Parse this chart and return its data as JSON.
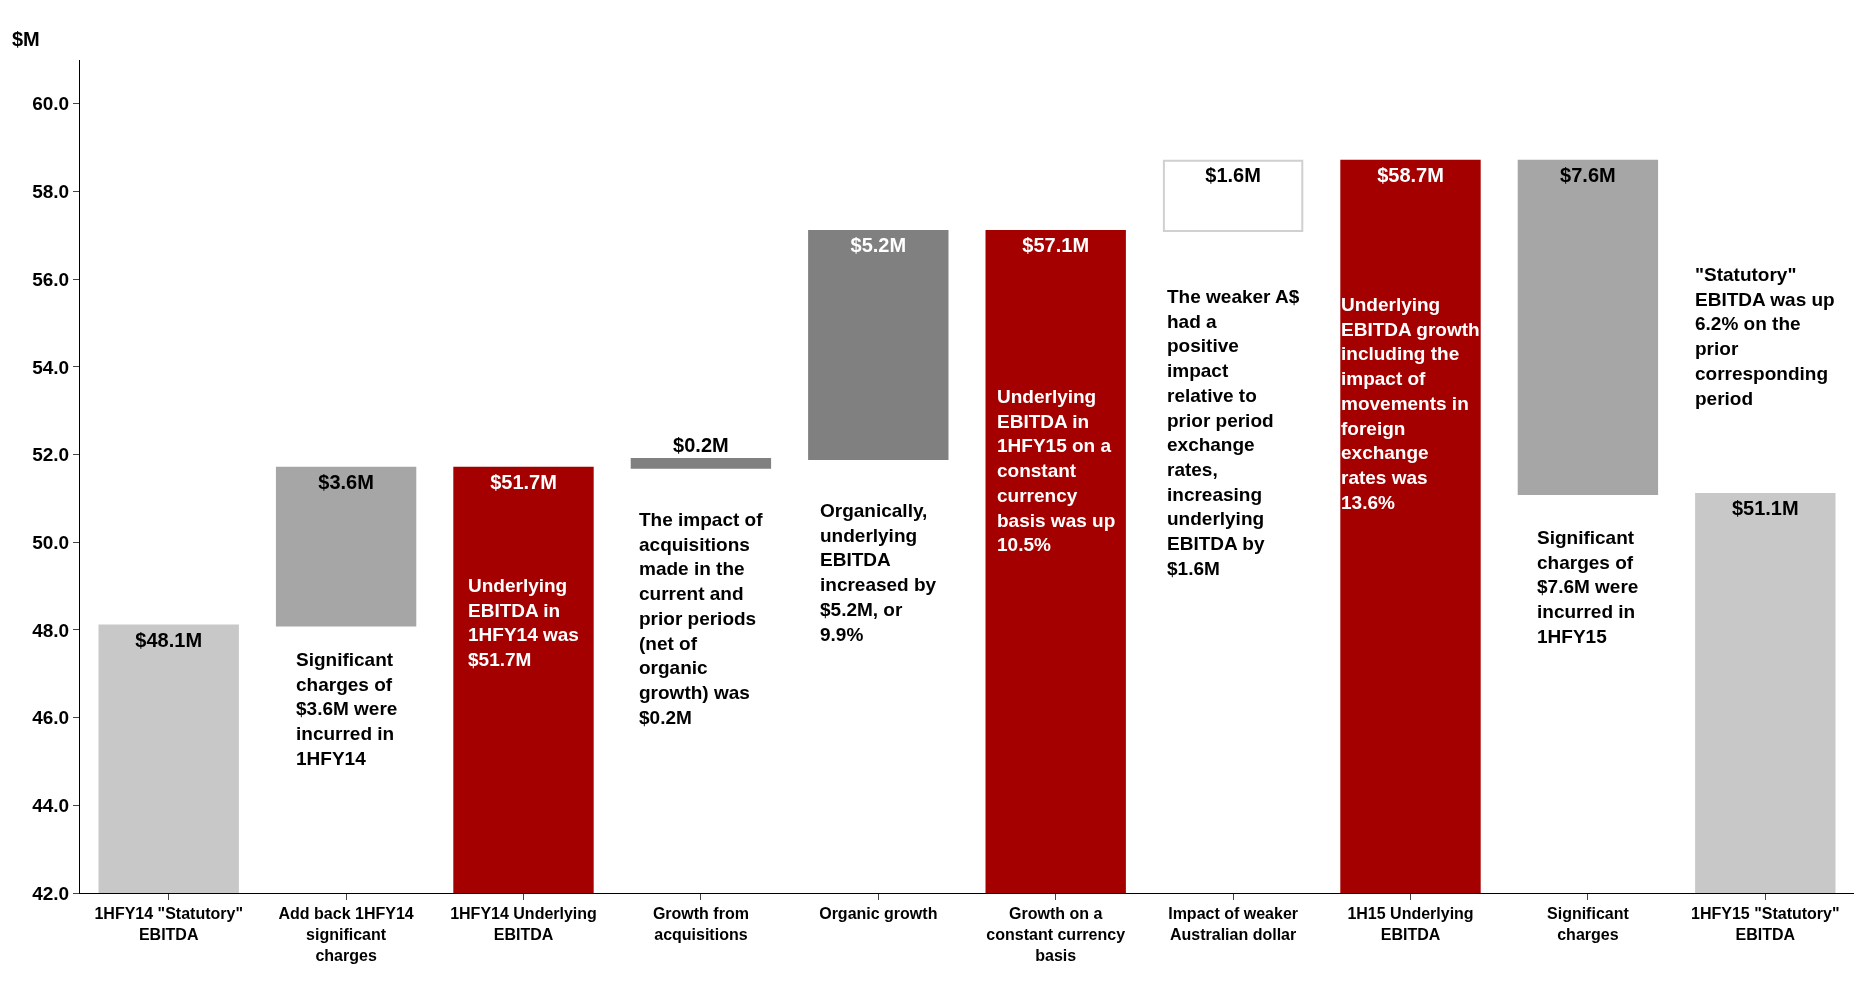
{
  "chart_data": {
    "type": "bar",
    "ylabel": "$M",
    "categories": [
      "1HFY14 \"Statutory\" EBITDA",
      "Add back 1HFY14 significant charges",
      "1HFY14 Underlying EBITDA",
      "Growth from acquisitions",
      "Organic growth",
      "Growth on a constant currency basis",
      "Impact of weaker Australian dollar",
      "1H15 Underlying EBITDA",
      "Significant charges",
      "1HFY15 \"Statutory\" EBITDA"
    ],
    "values": [
      48.1,
      3.6,
      51.7,
      0.2,
      5.2,
      57.1,
      1.6,
      58.7,
      7.6,
      51.1
    ],
    "base": [
      0,
      48.1,
      0,
      51.7,
      51.9,
      0,
      57.1,
      0,
      51.1,
      0
    ],
    "colors": [
      "#c8c8c8",
      "#a6a6a6",
      "#a50000",
      "#808080",
      "#808080",
      "#a50000",
      "#ffffff",
      "#a50000",
      "#a6a6a6",
      "#c8c8c8"
    ],
    "value_labels": [
      "$48.1M",
      "$3.6M",
      "$51.7M",
      "$0.2M",
      "$5.2M",
      "$57.1M",
      "$1.6M",
      "$58.7M",
      "$7.6M",
      "$51.1M"
    ],
    "ylim": [
      42,
      61
    ],
    "yticks": [
      {
        "value": 42,
        "label": "42.0"
      },
      {
        "value": 44,
        "label": "44.0"
      },
      {
        "value": 46,
        "label": "46.0"
      },
      {
        "value": 48,
        "label": "48.0"
      },
      {
        "value": 50,
        "label": "50.0"
      },
      {
        "value": 52,
        "label": "52.0"
      },
      {
        "value": 54,
        "label": "54.0"
      },
      {
        "value": 56,
        "label": "56.0"
      },
      {
        "value": 58,
        "label": "58.0"
      },
      {
        "value": 60,
        "label": "60.0"
      }
    ],
    "legend": false,
    "annotations": [
      "Significant charges of $3.6M were incurred in 1HFY14",
      "Underlying EBITDA in 1HFY14 was $51.7M",
      "The impact of acquisitions made in the current and prior periods (net of organic growth) was $0.2M",
      "Organically, underlying EBITDA increased by $5.2M, or 9.9%",
      "Underlying EBITDA in 1HFY15 on a constant currency basis was up 10.5%",
      "The weaker A$ had a positive impact relative to prior period exchange rates, increasing underlying EBITDA by $1.6M",
      "Underlying EBITDA growth including the impact of movements in foreign exchange rates was 13.6%",
      "Significant charges of $7.6M were incurred in 1HFY15",
      "\"Statutory\" EBITDA was up 6.2% on the prior corresponding period"
    ]
  }
}
